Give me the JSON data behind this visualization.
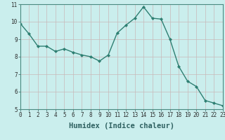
{
  "x": [
    0,
    1,
    2,
    3,
    4,
    5,
    6,
    7,
    8,
    9,
    10,
    11,
    12,
    13,
    14,
    15,
    16,
    17,
    18,
    19,
    20,
    21,
    22,
    23
  ],
  "y": [
    9.9,
    9.3,
    8.6,
    8.6,
    8.3,
    8.45,
    8.25,
    8.1,
    8.0,
    7.75,
    8.1,
    9.35,
    9.8,
    10.2,
    10.85,
    10.2,
    10.15,
    9.0,
    7.45,
    6.6,
    6.3,
    5.5,
    5.35,
    5.2
  ],
  "xlabel": "Humidex (Indice chaleur)",
  "ylim": [
    5,
    11
  ],
  "xlim": [
    0,
    23
  ],
  "yticks": [
    5,
    6,
    7,
    8,
    9,
    10,
    11
  ],
  "xticks": [
    0,
    1,
    2,
    3,
    4,
    5,
    6,
    7,
    8,
    9,
    10,
    11,
    12,
    13,
    14,
    15,
    16,
    17,
    18,
    19,
    20,
    21,
    22,
    23
  ],
  "line_color": "#2e7f72",
  "marker": "D",
  "marker_size": 2.0,
  "bg_color": "#caeeed",
  "grid_color": "#c8b8b8",
  "line_width": 1.0,
  "tick_fontsize": 5.5,
  "xlabel_fontsize": 7.5
}
